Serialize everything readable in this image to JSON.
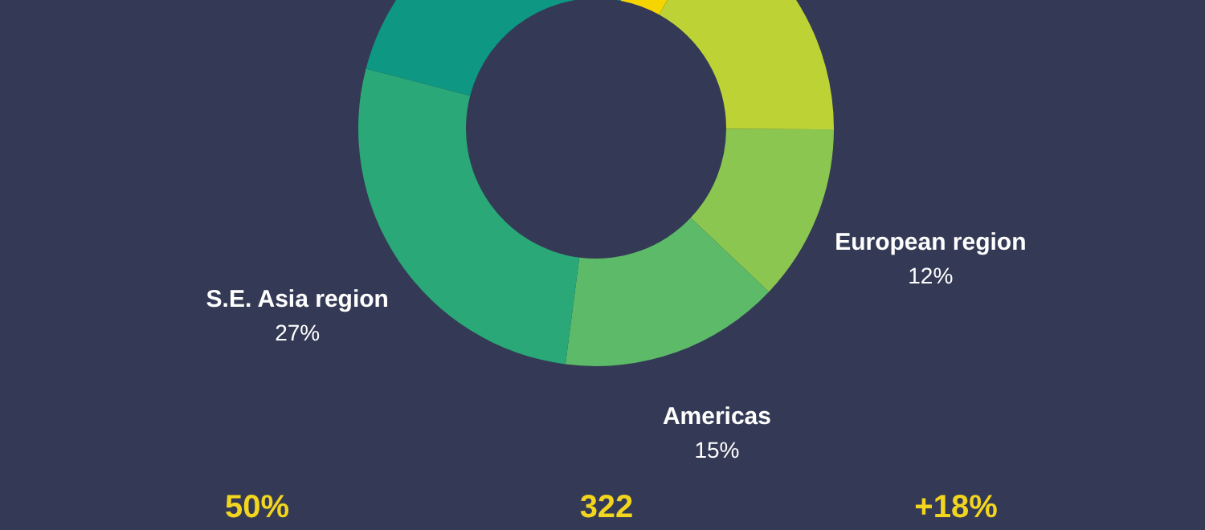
{
  "chart_data": {
    "type": "donut",
    "categories": [
      null,
      null,
      "European region",
      "Americas",
      "S.E. Asia region",
      null
    ],
    "values": [
      5,
      17,
      12,
      15,
      27,
      24
    ],
    "colors": [
      "#f5d400",
      "#bdd335",
      "#8bc750",
      "#5cba68",
      "#2aa878",
      "#0e9783"
    ],
    "value_labels": [
      null,
      null,
      "12%",
      "15%",
      "27%",
      null
    ],
    "annotations": [
      "50%",
      "322",
      "+18%"
    ]
  }
}
